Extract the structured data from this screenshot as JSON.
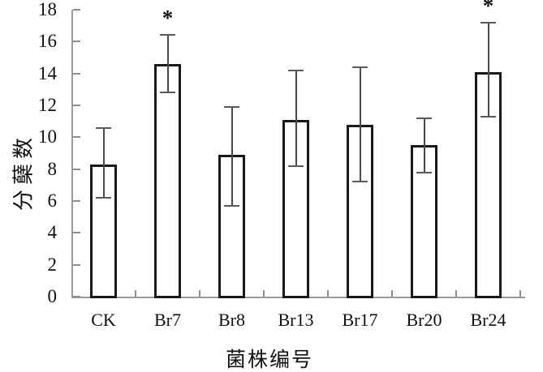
{
  "chart_data": {
    "type": "bar",
    "title": "",
    "xlabel": "菌株编号",
    "ylabel": "分蘖数",
    "categories": [
      "CK",
      "Br7",
      "Br8",
      "Br13",
      "Br17",
      "Br20",
      "Br24"
    ],
    "values": [
      8.3,
      14.6,
      8.9,
      11.1,
      10.8,
      9.5,
      14.1
    ],
    "error_low": [
      6.2,
      12.8,
      5.7,
      8.2,
      7.2,
      7.8,
      11.3
    ],
    "error_high": [
      10.6,
      16.4,
      11.9,
      14.2,
      14.4,
      11.2,
      17.2
    ],
    "significance": [
      "",
      "*",
      "",
      "",
      "",
      "",
      "*"
    ],
    "ylim": [
      0,
      18
    ],
    "ytick_step": 2,
    "grid": false,
    "legend": "none",
    "bar_fill": "#ffffff",
    "bar_border": "#1a1a1a",
    "axis_color": "#9a9a9a",
    "error_color": "#4a4a4a",
    "text_color": "#111111"
  }
}
